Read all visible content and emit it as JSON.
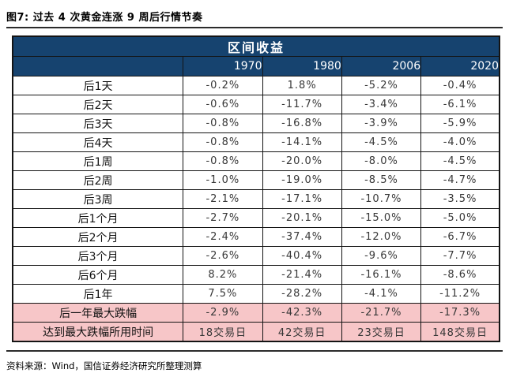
{
  "figure": {
    "title": "图7: 过去 4 次黄金连涨 9 周后行情节奏",
    "source": "资料来源：Wind，国信证券经济研究所整理测算"
  },
  "chart_data": {
    "type": "table",
    "title": "区间收益",
    "columns": [
      "1970",
      "1980",
      "2006",
      "2020"
    ],
    "rows": [
      {
        "label": "后1天",
        "values": [
          "-0.2%",
          "1.8%",
          "-5.2%",
          "-0.4%"
        ],
        "highlight": false
      },
      {
        "label": "后2天",
        "values": [
          "-0.6%",
          "-11.7%",
          "-3.4%",
          "-6.1%"
        ],
        "highlight": false
      },
      {
        "label": "后3天",
        "values": [
          "-0.8%",
          "-16.8%",
          "-3.9%",
          "-5.9%"
        ],
        "highlight": false
      },
      {
        "label": "后4天",
        "values": [
          "-0.8%",
          "-14.1%",
          "-4.5%",
          "-4.0%"
        ],
        "highlight": false
      },
      {
        "label": "后1周",
        "values": [
          "-0.8%",
          "-20.0%",
          "-8.0%",
          "-4.5%"
        ],
        "highlight": false
      },
      {
        "label": "后2周",
        "values": [
          "-1.0%",
          "-19.0%",
          "-8.5%",
          "-4.7%"
        ],
        "highlight": false
      },
      {
        "label": "后3周",
        "values": [
          "-2.1%",
          "-17.1%",
          "-10.7%",
          "-3.5%"
        ],
        "highlight": false
      },
      {
        "label": "后1个月",
        "values": [
          "-2.7%",
          "-20.1%",
          "-15.0%",
          "-5.0%"
        ],
        "highlight": false
      },
      {
        "label": "后2个月",
        "values": [
          "-2.4%",
          "-37.4%",
          "-12.0%",
          "-6.7%"
        ],
        "highlight": false
      },
      {
        "label": "后3个月",
        "values": [
          "-2.6%",
          "-40.4%",
          "-9.6%",
          "-7.7%"
        ],
        "highlight": false
      },
      {
        "label": "后6个月",
        "values": [
          "8.2%",
          "-21.4%",
          "-16.1%",
          "-8.6%"
        ],
        "highlight": false
      },
      {
        "label": "后1年",
        "values": [
          "7.5%",
          "-28.2%",
          "-4.1%",
          "-11.2%"
        ],
        "highlight": false
      },
      {
        "label": "后一年最大跌幅",
        "values": [
          "-2.9%",
          "-42.3%",
          "-21.7%",
          "-17.3%"
        ],
        "highlight": true
      },
      {
        "label": "达到最大跌幅所用时间",
        "values": [
          "18交易日",
          "42交易日",
          "23交易日",
          "148交易日"
        ],
        "highlight": true
      }
    ],
    "layout": {
      "label_col_width": 215,
      "year_col_width": 100
    }
  },
  "colors": {
    "header_bg": "#16436F",
    "header_text": "#FFFFFF",
    "highlight_bg": "#F7C6C8",
    "border": "#141414",
    "rule": "#2B2B2B"
  }
}
